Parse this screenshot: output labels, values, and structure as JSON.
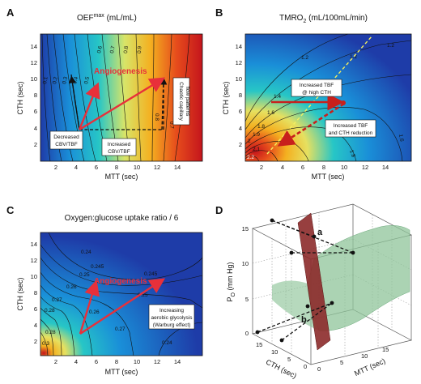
{
  "panels": {
    "A": {
      "letter": "A",
      "title_main": "OEF",
      "title_sup": "max",
      "title_unit": " (mL/mL)",
      "xlabel": "MTT (sec)",
      "ylabel": "CTH (sec)",
      "boxes": {
        "decreased": [
          "Decreased",
          "CBV/TBF"
        ],
        "increased": [
          "Increased",
          "CBV/TBF"
        ],
        "chaotic": [
          "Chaotic capillary",
          "flow patterns"
        ]
      },
      "arrow_label": "Angiogenesis"
    },
    "B": {
      "letter": "B",
      "title_main": "TMRO",
      "title_sub": "2",
      "title_unit": " (mL/100mL/min)",
      "xlabel": "MTT (sec)",
      "ylabel": "CTH (sec)",
      "boxes": {
        "high": [
          "Increased TBF",
          "@ high CTH"
        ],
        "reduction": [
          "Increased TBF",
          "and CTH reduction"
        ]
      }
    },
    "C": {
      "letter": "C",
      "title": "Oxygen:glucose uptake ratio / 6",
      "xlabel": "MTT (sec)",
      "ylabel": "CTH (sec)",
      "boxes": {
        "aerobic": [
          "Increasing",
          "aerobic glycolysis",
          "(Warburg effect)"
        ]
      },
      "arrow_label": "Angiogenesis"
    },
    "D": {
      "letter": "D",
      "zlabel_main": "P",
      "zlabel_sub": "O",
      "zlabel_unit": " (mm Hg)",
      "xlabel": "CTH (sec)",
      "ylabel": "MTT (sec)",
      "point_a": "a",
      "point_b": "b"
    }
  },
  "chart_data": [
    {
      "panel": "A",
      "type": "heatmap",
      "title": "OEFmax (mL/mL)",
      "xlabel": "MTT (sec)",
      "ylabel": "CTH (sec)",
      "xlim": [
        0,
        16
      ],
      "ylim": [
        0,
        15.5
      ],
      "xticks": [
        2,
        4,
        6,
        8,
        10,
        12,
        14
      ],
      "yticks": [
        2,
        4,
        6,
        8,
        10,
        12,
        14
      ],
      "contour_labels": [
        "0.1",
        "0.2",
        "0.3",
        "0.4",
        "0.5",
        "0.6",
        "0.7",
        "0.8",
        "0.9",
        "0.8",
        "0.7",
        "0.6",
        "0.5",
        "0.4",
        "0.3",
        "0.2",
        "0.1"
      ],
      "colormap": [
        "#1e3ca8",
        "#1a8fd8",
        "#27c6c6",
        "#e6e060",
        "#f4b020",
        "#e64c1c",
        "#c4141c"
      ]
    },
    {
      "panel": "B",
      "type": "heatmap",
      "title": "TMRO2 (mL/100mL/min)",
      "xlabel": "MTT (sec)",
      "ylabel": "CTH (sec)",
      "xlim": [
        0,
        16
      ],
      "ylim": [
        0,
        15.5
      ],
      "xticks": [
        2,
        4,
        6,
        8,
        10,
        12,
        14
      ],
      "yticks": [
        2,
        4,
        6,
        8,
        10,
        12,
        14
      ],
      "contour_labels": [
        "1.2",
        "1.2",
        "1.2",
        "1.4",
        "1.6",
        "1.8",
        "1.9",
        "2",
        "2.1",
        "2.2",
        "1.6",
        "1.8"
      ],
      "colormap": [
        "#1e3ca8",
        "#1a8fd8",
        "#27c6c6",
        "#e6e060",
        "#f4b020",
        "#e64c1c",
        "#c4141c"
      ]
    },
    {
      "panel": "C",
      "type": "heatmap",
      "title": "Oxygen:glucose uptake ratio / 6",
      "xlabel": "MTT (sec)",
      "ylabel": "CTH (sec)",
      "xlim": [
        0,
        16
      ],
      "ylim": [
        0,
        15.5
      ],
      "xticks": [
        2,
        4,
        6,
        8,
        10,
        12,
        14
      ],
      "yticks": [
        2,
        4,
        6,
        8,
        10,
        12,
        14
      ],
      "contour_labels": [
        "0.24",
        "0.245",
        "0.245",
        "0.25",
        "0.25",
        "0.26",
        "0.26",
        "0.27",
        "0.27",
        "0.28",
        "0.28",
        "0.3",
        "0.24"
      ],
      "colormap": [
        "#1e3ca8",
        "#1a8fd8",
        "#27c6c6",
        "#e6e060",
        "#f4b020",
        "#e64c1c",
        "#c4141c"
      ]
    },
    {
      "panel": "D",
      "type": "surface3d",
      "xlabel": "CTH (sec)",
      "ylabel": "MTT (sec)",
      "zlabel": "PO2 (mm Hg)",
      "zticks": [
        0,
        5,
        10,
        15
      ],
      "cth_ticks": [
        0,
        5,
        10,
        15
      ],
      "mtt_ticks": [
        0,
        5,
        10,
        15
      ],
      "points": [
        "a",
        "b"
      ],
      "colors": {
        "surface": "#8fc49a",
        "plane": "#8c2a2a"
      }
    }
  ]
}
